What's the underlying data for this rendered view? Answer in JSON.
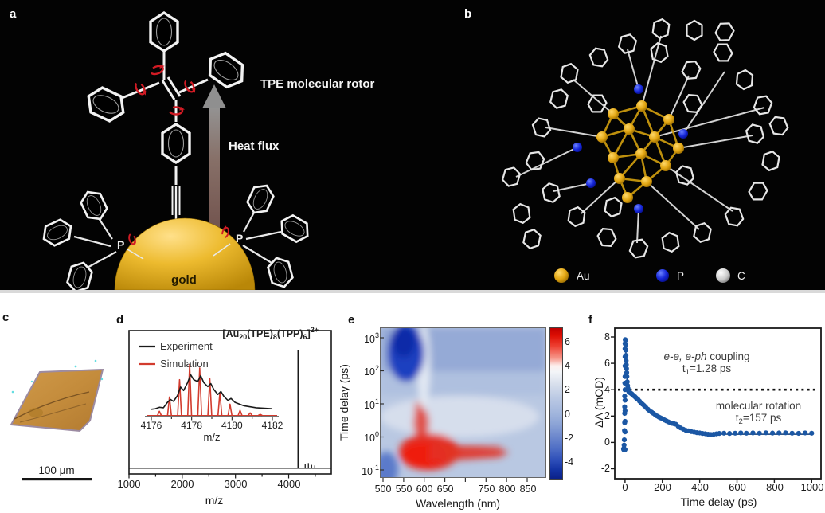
{
  "panel_a": {
    "label": "a",
    "rotor_label": "TPE molecular rotor",
    "heat_flux_label": "Heat flux",
    "gold_label": "gold",
    "p_left": "P",
    "p_right": "P"
  },
  "panel_b": {
    "label": "b",
    "legend": {
      "au": "Au",
      "p": "P",
      "c": "C"
    },
    "colors": {
      "au": "#e9a21a",
      "p": "#1526d8",
      "c": "#c9c9c9"
    }
  },
  "panel_c": {
    "label": "c",
    "scale_bar": "100 μm"
  },
  "panel_d": {
    "label": "d",
    "legend": {
      "experiment": "Experiment",
      "simulation": "Simulation"
    },
    "formula": {
      "p1": "[Au",
      "s1": "20",
      "p2": "(TPE)",
      "s2": "8",
      "p3": "(TPP)",
      "s3": "6",
      "p4": "]",
      "sup": "2+"
    },
    "xlabel": "m/z",
    "xticks": [
      "1000",
      "2000",
      "3000",
      "4000"
    ],
    "inset": {
      "xticks": [
        "4176",
        "4178",
        "4180",
        "4182"
      ],
      "xlabel": "m/z"
    },
    "colors": {
      "experiment": "#1a1a1a",
      "simulation": "#d23b2e"
    }
  },
  "panel_e": {
    "label": "e",
    "xlabel": "Wavelength (nm)",
    "ylabel": "Time delay (ps)",
    "xticks": [
      "500",
      "550",
      "600",
      "650",
      "",
      "750",
      "800",
      "850"
    ],
    "yticks": [
      {
        "base": "10",
        "exp": "3"
      },
      {
        "base": "10",
        "exp": "2"
      },
      {
        "base": "10",
        "exp": "1"
      },
      {
        "base": "10",
        "exp": "0"
      },
      {
        "base": "10",
        "exp": "-1"
      }
    ],
    "colorbar_ticks": [
      "6",
      "4",
      "2",
      "0",
      "-2",
      "-4"
    ]
  },
  "panel_f": {
    "label": "f",
    "xlabel": "Time delay (ps)",
    "ylabel": "ΔA (mOD)",
    "xticks": [
      "0",
      "200",
      "400",
      "600",
      "800",
      "1000"
    ],
    "yticks": [
      "8",
      "6",
      "4",
      "2",
      "0",
      "-2"
    ],
    "ann1": {
      "italic": "e-e, e-ph",
      "rest": " coupling",
      "tpre": "t",
      "tsub": "1",
      "tval": "=1.28 ps"
    },
    "ann2": {
      "text": "molecular rotation",
      "tpre": "t",
      "tsub": "2",
      "tval": "=157 ps"
    },
    "point_color": "#1b57a4"
  },
  "chart_data": [
    {
      "type": "line",
      "panel": "d",
      "title": "[Au20(TPE)8(TPP)6]2+ ESI mass spectrum",
      "legend": [
        "Experiment",
        "Simulation"
      ],
      "main": {
        "xlabel": "m/z",
        "xlim": [
          1000,
          4800
        ],
        "peaks": [
          [
            4178,
            1.0
          ],
          [
            4310,
            0.035
          ],
          [
            4370,
            0.045
          ],
          [
            4430,
            0.03
          ],
          [
            4490,
            0.025
          ]
        ]
      },
      "inset": {
        "xlabel": "m/z",
        "xlim": [
          4176,
          4182
        ],
        "experiment": [
          [
            4176.0,
            0.1
          ],
          [
            4176.2,
            0.11
          ],
          [
            4176.4,
            0.14
          ],
          [
            4176.6,
            0.13
          ],
          [
            4176.8,
            0.24
          ],
          [
            4176.95,
            0.3
          ],
          [
            4177.1,
            0.26
          ],
          [
            4177.3,
            0.38
          ],
          [
            4177.45,
            0.55
          ],
          [
            4177.6,
            0.48
          ],
          [
            4177.8,
            0.64
          ],
          [
            4177.95,
            0.8
          ],
          [
            4178.1,
            0.7
          ],
          [
            4178.3,
            0.66
          ],
          [
            4178.45,
            0.78
          ],
          [
            4178.6,
            0.64
          ],
          [
            4178.8,
            0.56
          ],
          [
            4178.95,
            0.62
          ],
          [
            4179.1,
            0.5
          ],
          [
            4179.3,
            0.4
          ],
          [
            4179.45,
            0.46
          ],
          [
            4179.6,
            0.36
          ],
          [
            4179.8,
            0.28
          ],
          [
            4179.95,
            0.32
          ],
          [
            4180.15,
            0.24
          ],
          [
            4180.4,
            0.2
          ],
          [
            4180.6,
            0.17
          ],
          [
            4180.9,
            0.15
          ],
          [
            4181.2,
            0.13
          ],
          [
            4181.6,
            0.12
          ],
          [
            4182.0,
            0.11
          ]
        ],
        "simulation": [
          [
            4176.4,
            0.08
          ],
          [
            4176.9,
            0.36
          ],
          [
            4177.4,
            0.7
          ],
          [
            4177.9,
            1.0
          ],
          [
            4178.4,
            0.93
          ],
          [
            4178.9,
            0.72
          ],
          [
            4179.4,
            0.45
          ],
          [
            4179.9,
            0.22
          ],
          [
            4180.4,
            0.1
          ],
          [
            4180.9,
            0.05
          ],
          [
            4181.4,
            0.02
          ]
        ]
      }
    },
    {
      "type": "heatmap",
      "panel": "e",
      "xlabel": "Wavelength (nm)",
      "ylabel": "Time delay (ps)",
      "xlim": [
        500,
        890
      ],
      "ylim_log_ps": [
        0.05,
        2000
      ],
      "colorbar_range": [
        -5,
        7
      ],
      "colorbar_ticks": [
        6,
        4,
        2,
        0,
        -2,
        -4
      ],
      "features": [
        {
          "name": "excited-state-absorption",
          "wavelength_nm": [
            540,
            790
          ],
          "time_ps": [
            0.05,
            2
          ],
          "peak_value": 7
        },
        {
          "name": "esa-upper-tail",
          "wavelength_nm": [
            565,
            615
          ],
          "time_ps": [
            2,
            15
          ],
          "value": 5
        },
        {
          "name": "ground-state-bleach",
          "wavelength_nm": [
            515,
            575
          ],
          "time_ps": [
            50,
            2000
          ],
          "min_value": -5
        },
        {
          "name": "background",
          "value": 2
        }
      ]
    },
    {
      "type": "scatter",
      "panel": "f",
      "xlabel": "Time delay (ps)",
      "ylabel": "ΔA (mOD)",
      "xlim": [
        -55,
        1050
      ],
      "ylim": [
        -2.8,
        8.7
      ],
      "threshold_line_y": 4.0,
      "time_constants": {
        "t1_ps": 1.28,
        "t2_ps": 157
      },
      "points": [
        [
          -8,
          -0.5
        ],
        [
          -7,
          -0.55
        ],
        [
          -6,
          -0.45
        ],
        [
          -5,
          -0.2
        ],
        [
          -4,
          0.2
        ],
        [
          -3,
          0.9
        ],
        [
          -2,
          1.5
        ],
        [
          -2,
          2.2
        ],
        [
          -2,
          2.7
        ],
        [
          -2,
          3.5
        ],
        [
          -1,
          4.5
        ],
        [
          0,
          -0.55
        ],
        [
          0,
          0.8
        ],
        [
          0,
          1.6
        ],
        [
          0,
          2.4
        ],
        [
          0,
          3.2
        ],
        [
          0,
          4.0
        ],
        [
          0,
          5.0
        ],
        [
          0,
          5.8
        ],
        [
          0,
          6.5
        ],
        [
          0,
          7.1
        ],
        [
          0,
          7.5
        ],
        [
          1,
          7.8
        ],
        [
          2,
          7.75
        ],
        [
          3,
          7.4
        ],
        [
          4,
          7.0
        ],
        [
          5,
          6.6
        ],
        [
          6,
          6.2
        ],
        [
          7,
          5.9
        ],
        [
          8,
          5.6
        ],
        [
          9,
          5.3
        ],
        [
          10,
          5.0
        ],
        [
          12,
          4.6
        ],
        [
          14,
          4.3
        ],
        [
          16,
          4.1
        ],
        [
          18,
          3.95
        ],
        [
          20,
          3.85
        ],
        [
          24,
          3.8
        ],
        [
          28,
          3.75
        ],
        [
          32,
          3.72
        ],
        [
          36,
          3.68
        ],
        [
          40,
          3.62
        ],
        [
          46,
          3.55
        ],
        [
          52,
          3.48
        ],
        [
          58,
          3.4
        ],
        [
          64,
          3.32
        ],
        [
          70,
          3.25
        ],
        [
          78,
          3.12
        ],
        [
          86,
          3.0
        ],
        [
          94,
          2.9
        ],
        [
          102,
          2.8
        ],
        [
          112,
          2.65
        ],
        [
          122,
          2.52
        ],
        [
          132,
          2.4
        ],
        [
          142,
          2.3
        ],
        [
          152,
          2.2
        ],
        [
          162,
          2.1
        ],
        [
          172,
          2.0
        ],
        [
          182,
          1.92
        ],
        [
          192,
          1.85
        ],
        [
          202,
          1.78
        ],
        [
          212,
          1.7
        ],
        [
          222,
          1.63
        ],
        [
          232,
          1.56
        ],
        [
          242,
          1.5
        ],
        [
          252,
          1.45
        ],
        [
          262,
          1.42
        ],
        [
          272,
          1.38
        ],
        [
          285,
          1.22
        ],
        [
          298,
          1.1
        ],
        [
          312,
          1.0
        ],
        [
          326,
          0.92
        ],
        [
          340,
          0.88
        ],
        [
          355,
          0.82
        ],
        [
          370,
          0.78
        ],
        [
          385,
          0.74
        ],
        [
          400,
          0.72
        ],
        [
          415,
          0.68
        ],
        [
          430,
          0.66
        ],
        [
          445,
          0.62
        ],
        [
          460,
          0.6
        ],
        [
          475,
          0.62
        ],
        [
          490,
          0.65
        ],
        [
          505,
          0.68
        ],
        [
          530,
          0.7
        ],
        [
          560,
          0.68
        ],
        [
          590,
          0.7
        ],
        [
          620,
          0.72
        ],
        [
          650,
          0.7
        ],
        [
          685,
          0.72
        ],
        [
          720,
          0.7
        ],
        [
          755,
          0.73
        ],
        [
          790,
          0.71
        ],
        [
          825,
          0.72
        ],
        [
          860,
          0.73
        ],
        [
          895,
          0.7
        ],
        [
          930,
          0.69
        ],
        [
          965,
          0.72
        ],
        [
          1000,
          0.7
        ]
      ],
      "fit_line": [
        [
          1.2,
          7.8
        ],
        [
          2,
          7.7
        ],
        [
          3,
          7.35
        ],
        [
          5,
          6.6
        ],
        [
          8,
          5.6
        ],
        [
          12,
          4.6
        ],
        [
          16,
          4.1
        ],
        [
          22,
          3.82
        ],
        [
          30,
          3.73
        ],
        [
          40,
          3.62
        ],
        [
          55,
          3.45
        ],
        [
          75,
          3.18
        ],
        [
          100,
          2.82
        ],
        [
          130,
          2.42
        ],
        [
          160,
          2.12
        ],
        [
          200,
          1.8
        ],
        [
          240,
          1.52
        ],
        [
          280,
          1.3
        ],
        [
          320,
          1.05
        ],
        [
          360,
          0.88
        ],
        [
          400,
          0.76
        ],
        [
          450,
          0.66
        ],
        [
          500,
          0.63
        ],
        [
          600,
          0.62
        ],
        [
          750,
          0.62
        ],
        [
          900,
          0.62
        ],
        [
          1010,
          0.62
        ]
      ]
    }
  ]
}
